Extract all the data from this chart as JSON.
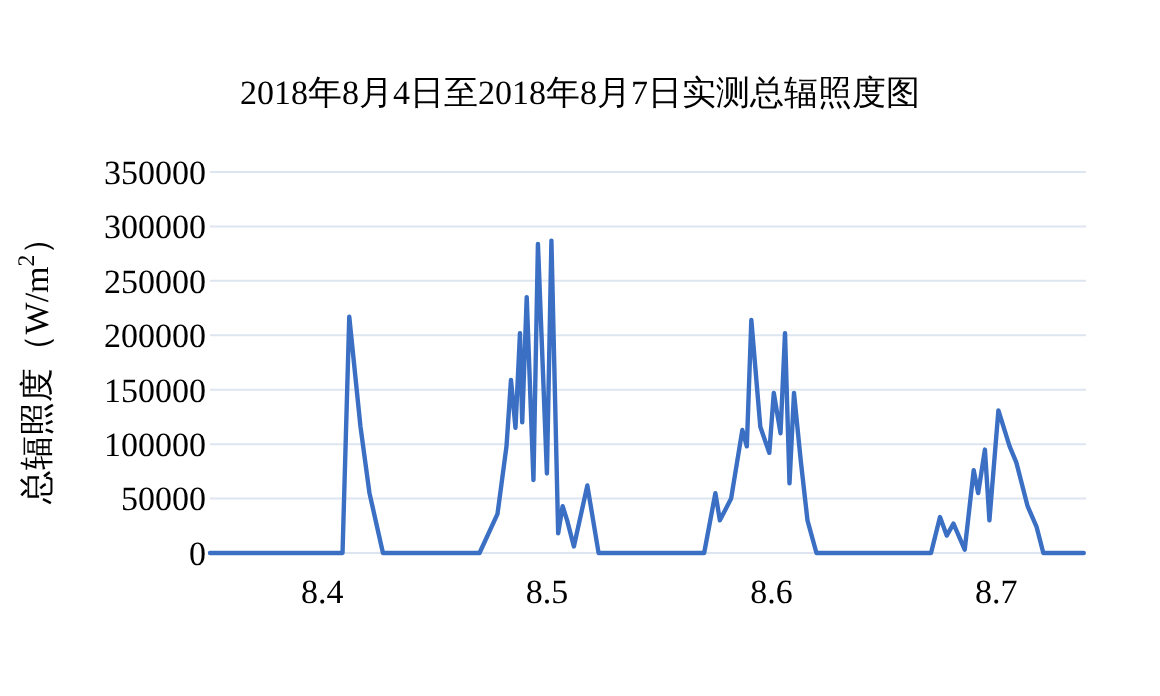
{
  "chart_data": {
    "type": "line",
    "title": "2018年8月4日至2018年8月7日实测总辐照度图",
    "ylabel": "总辐照度（W/m$^{2}$）",
    "xlim": [
      8.35,
      8.74
    ],
    "xticks": [
      8.4,
      8.5,
      8.6,
      8.7
    ],
    "ylim": [
      0,
      350000
    ],
    "yticks": [
      0,
      50000,
      100000,
      150000,
      200000,
      250000,
      300000,
      350000
    ],
    "grid": "y",
    "marker": "none",
    "line_style": "solid",
    "series": [
      {
        "color": "#3a6fc4",
        "x": [
          8.35,
          8.409,
          8.412,
          8.417,
          8.421,
          8.427,
          8.47,
          8.478,
          8.482,
          8.484,
          8.486,
          8.488,
          8.489,
          8.491,
          8.494,
          8.496,
          8.5,
          8.502,
          8.505,
          8.507,
          8.509,
          8.512,
          8.518,
          8.523,
          8.57,
          8.575,
          8.577,
          8.582,
          8.587,
          8.589,
          8.591,
          8.595,
          8.599,
          8.601,
          8.604,
          8.606,
          8.608,
          8.61,
          8.613,
          8.616,
          8.62,
          8.671,
          8.675,
          8.678,
          8.681,
          8.686,
          8.69,
          8.692,
          8.695,
          8.697,
          8.701,
          8.706,
          8.709,
          8.714,
          8.718,
          8.721,
          8.739
        ],
        "values": [
          0,
          0,
          217000,
          116000,
          55000,
          0,
          0,
          36000,
          98000,
          159000,
          115000,
          202000,
          120000,
          235000,
          67000,
          284000,
          73000,
          287000,
          18000,
          43000,
          30000,
          6000,
          62000,
          0,
          0,
          55000,
          30000,
          50000,
          113000,
          98000,
          214000,
          116000,
          92000,
          147000,
          110000,
          202000,
          64000,
          147000,
          85000,
          30000,
          0,
          0,
          33000,
          16000,
          27000,
          3000,
          76000,
          55000,
          95000,
          30000,
          131000,
          98000,
          83000,
          43000,
          24000,
          0,
          0
        ]
      }
    ]
  }
}
